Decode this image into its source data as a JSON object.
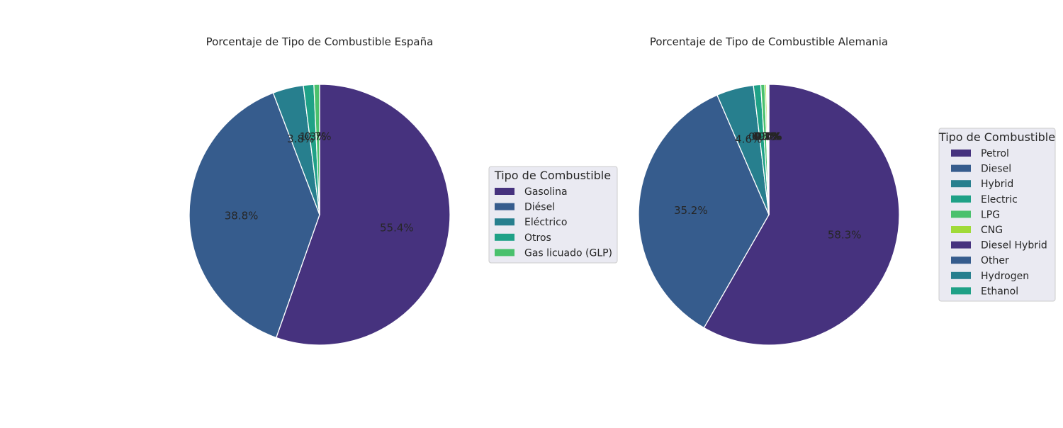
{
  "chart_data": [
    {
      "type": "pie",
      "title": "Porcentaje de Tipo de Combustible España",
      "legend_title": "Tipo de Combustible",
      "legend_position": "right",
      "start_angle": 90,
      "direction": "clockwise",
      "slices": [
        {
          "label": "Gasolina",
          "value": 55.4,
          "color": "#46327e",
          "pct_text": "55.4%"
        },
        {
          "label": "Diésel",
          "value": 38.8,
          "color": "#365c8d",
          "pct_text": "38.8%"
        },
        {
          "label": "Eléctrico",
          "value": 3.8,
          "color": "#277f8e",
          "pct_text": "3.8%"
        },
        {
          "label": "Otros",
          "value": 1.3,
          "color": "#1fa187",
          "pct_text": "1.3%"
        },
        {
          "label": "Gas licuado (GLP)",
          "value": 0.7,
          "color": "#4ac16d",
          "pct_text": "0.7%"
        }
      ]
    },
    {
      "type": "pie",
      "title": "Porcentaje de Tipo de Combustible Alemania",
      "legend_title": "Tipo de Combustible",
      "legend_position": "right",
      "start_angle": 90,
      "direction": "clockwise",
      "slices": [
        {
          "label": "Petrol",
          "value": 58.3,
          "color": "#46327e",
          "pct_text": "58.3%"
        },
        {
          "label": "Diesel",
          "value": 35.2,
          "color": "#365c8d",
          "pct_text": "35.2%"
        },
        {
          "label": "Hybrid",
          "value": 4.6,
          "color": "#277f8e",
          "pct_text": "4.6%"
        },
        {
          "label": "Electric",
          "value": 0.9,
          "color": "#1fa187",
          "pct_text": "0.9%"
        },
        {
          "label": "LPG",
          "value": 0.5,
          "color": "#4ac16d",
          "pct_text": "0.5%"
        },
        {
          "label": "CNG",
          "value": 0.2,
          "color": "#a0da39",
          "pct_text": "0.2%"
        },
        {
          "label": "Diesel Hybrid",
          "value": 0.1,
          "color": "#46327e",
          "pct_text": "0.1%"
        },
        {
          "label": "Other",
          "value": 0.1,
          "color": "#365c8d",
          "pct_text": "0.1%"
        },
        {
          "label": "Hydrogen",
          "value": 0.05,
          "color": "#277f8e",
          "pct_text": "0.0%"
        },
        {
          "label": "Ethanol",
          "value": 0.05,
          "color": "#1fa187",
          "pct_text": "0.0%"
        }
      ]
    }
  ]
}
